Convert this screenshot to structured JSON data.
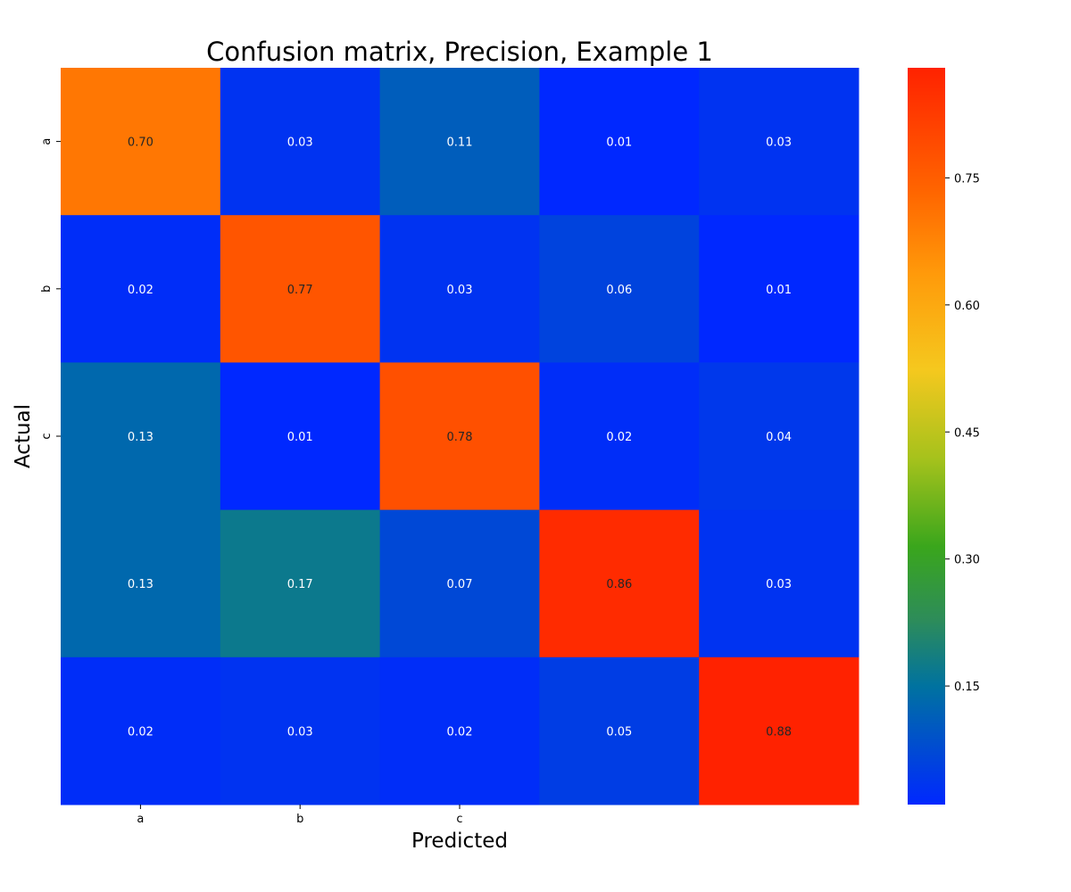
{
  "chart_data": {
    "type": "heatmap",
    "title": "Confusion matrix, Precision, Example 1",
    "xlabel": "Predicted",
    "ylabel": "Actual",
    "x_tick_labels": [
      "a",
      "b",
      "c",
      "",
      ""
    ],
    "y_tick_labels": [
      "a",
      "b",
      "c",
      "",
      ""
    ],
    "values": [
      [
        0.7,
        0.03,
        0.11,
        0.01,
        0.03
      ],
      [
        0.02,
        0.77,
        0.03,
        0.06,
        0.01
      ],
      [
        0.13,
        0.01,
        0.78,
        0.02,
        0.04
      ],
      [
        0.13,
        0.17,
        0.07,
        0.86,
        0.03
      ],
      [
        0.02,
        0.03,
        0.02,
        0.05,
        0.88
      ]
    ],
    "value_labels": [
      [
        "0.70",
        "0.03",
        "0.11",
        "0.01",
        "0.03"
      ],
      [
        "0.02",
        "0.77",
        "0.03",
        "0.06",
        "0.01"
      ],
      [
        "0.13",
        "0.01",
        "0.78",
        "0.02",
        "0.04"
      ],
      [
        "0.13",
        "0.17",
        "0.07",
        "0.86",
        "0.03"
      ],
      [
        "0.02",
        "0.03",
        "0.02",
        "0.05",
        "0.88"
      ]
    ],
    "colorbar": {
      "range": [
        0.01,
        0.88
      ],
      "ticks": [
        0.15,
        0.3,
        0.45,
        0.6,
        0.75
      ],
      "tick_labels": [
        "0.15",
        "0.30",
        "0.45",
        "0.60",
        "0.75"
      ],
      "colormap": [
        {
          "v": 0.0,
          "color": "#0028ff"
        },
        {
          "v": 0.16,
          "color": "#0072a0"
        },
        {
          "v": 0.25,
          "color": "#2d8c5a"
        },
        {
          "v": 0.35,
          "color": "#3aa61c"
        },
        {
          "v": 0.47,
          "color": "#a6c21c"
        },
        {
          "v": 0.59,
          "color": "#f5c81e"
        },
        {
          "v": 0.72,
          "color": "#ff9a0a"
        },
        {
          "v": 0.83,
          "color": "#ff6600"
        },
        {
          "v": 1.0,
          "color": "#ff2200"
        }
      ]
    },
    "grid": false,
    "legend": "colorbar-right"
  }
}
